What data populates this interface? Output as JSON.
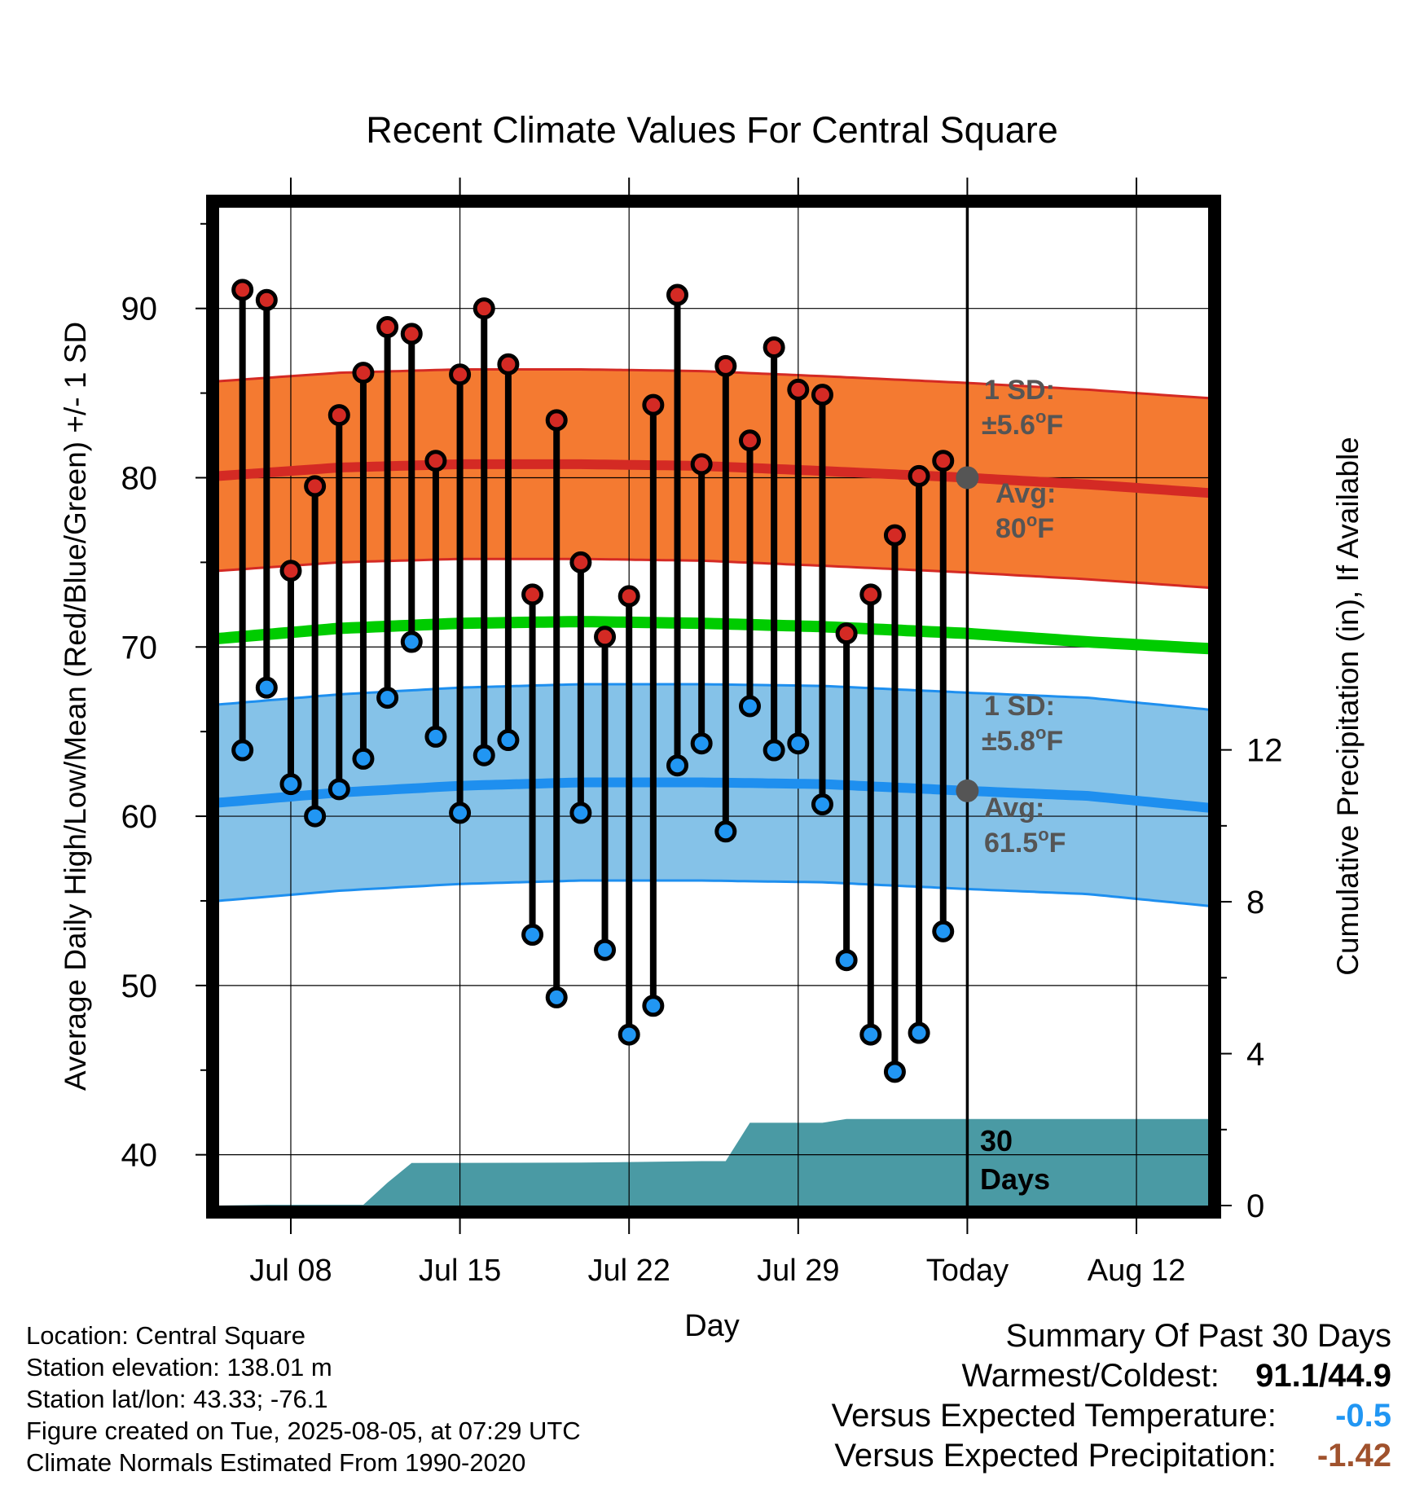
{
  "chart_data": {
    "type": "line",
    "title": "Recent Climate Values For Central Square",
    "xlabel": "Day",
    "ylabel_left": "Average Daily High/Low/Mean (Red/Blue/Green) +/- 1 SD",
    "ylabel_right": "Cumulative Precipitation (in), If Available",
    "xlim": [
      "2025-07-05",
      "2025-08-15"
    ],
    "ylim_left": [
      37,
      96
    ],
    "ylim_right": [
      0,
      26.3
    ],
    "left_ticks": [
      40,
      50,
      60,
      70,
      80,
      90
    ],
    "right_ticks": [
      0,
      4,
      8,
      12
    ],
    "x_ticks": [
      {
        "date": "2025-07-08",
        "label": "Jul 08"
      },
      {
        "date": "2025-07-15",
        "label": "Jul 15"
      },
      {
        "date": "2025-07-22",
        "label": "Jul 22"
      },
      {
        "date": "2025-07-29",
        "label": "Jul 29"
      },
      {
        "date": "2025-08-05",
        "label": "Today"
      },
      {
        "date": "2025-08-12",
        "label": "Aug 12"
      }
    ],
    "today": "2025-08-05",
    "grid": true,
    "normal_high": {
      "dates": [
        "2025-07-05",
        "2025-07-10",
        "2025-07-15",
        "2025-07-20",
        "2025-07-25",
        "2025-07-30",
        "2025-08-05",
        "2025-08-10",
        "2025-08-15"
      ],
      "mean": [
        80.1,
        80.6,
        80.8,
        80.8,
        80.7,
        80.4,
        80.0,
        79.6,
        79.1
      ],
      "sd": 5.6
    },
    "normal_mean": {
      "dates": [
        "2025-07-05",
        "2025-07-10",
        "2025-07-15",
        "2025-07-20",
        "2025-07-25",
        "2025-07-30",
        "2025-08-05",
        "2025-08-10",
        "2025-08-15"
      ],
      "values": [
        70.5,
        71.1,
        71.4,
        71.5,
        71.4,
        71.2,
        70.8,
        70.3,
        69.9
      ]
    },
    "normal_low": {
      "dates": [
        "2025-07-05",
        "2025-07-10",
        "2025-07-15",
        "2025-07-20",
        "2025-07-25",
        "2025-07-30",
        "2025-08-05",
        "2025-08-10",
        "2025-08-15"
      ],
      "mean": [
        60.8,
        61.4,
        61.8,
        62.0,
        62.0,
        61.9,
        61.5,
        61.2,
        60.5
      ],
      "sd": 5.8
    },
    "observed": {
      "dates": [
        "2025-07-06",
        "2025-07-07",
        "2025-07-08",
        "2025-07-09",
        "2025-07-10",
        "2025-07-11",
        "2025-07-12",
        "2025-07-13",
        "2025-07-14",
        "2025-07-15",
        "2025-07-16",
        "2025-07-17",
        "2025-07-18",
        "2025-07-19",
        "2025-07-20",
        "2025-07-21",
        "2025-07-22",
        "2025-07-23",
        "2025-07-24",
        "2025-07-25",
        "2025-07-26",
        "2025-07-27",
        "2025-07-28",
        "2025-07-29",
        "2025-07-30",
        "2025-07-31",
        "2025-08-01",
        "2025-08-02",
        "2025-08-03",
        "2025-08-04"
      ],
      "highs": [
        91.1,
        90.5,
        74.5,
        79.5,
        83.7,
        86.2,
        88.9,
        88.5,
        81.0,
        86.1,
        90.0,
        86.7,
        73.1,
        83.4,
        75.0,
        70.6,
        73.0,
        84.3,
        90.8,
        80.8,
        86.6,
        82.2,
        87.7,
        85.2,
        84.9,
        70.8,
        73.1,
        76.6,
        80.1,
        81.0
      ],
      "lows": [
        63.9,
        67.6,
        61.9,
        60.0,
        61.6,
        63.4,
        67.0,
        70.3,
        64.7,
        60.2,
        63.6,
        64.5,
        53.0,
        49.3,
        60.2,
        52.1,
        47.1,
        48.8,
        63.0,
        64.3,
        59.1,
        66.5,
        63.9,
        64.3,
        60.7,
        51.5,
        47.1,
        44.9,
        47.2,
        53.2
      ]
    },
    "precipitation": {
      "dates": [
        "2025-07-05",
        "2025-07-07",
        "2025-07-10",
        "2025-07-11",
        "2025-07-12",
        "2025-07-13",
        "2025-07-20",
        "2025-07-25",
        "2025-07-26",
        "2025-07-27",
        "2025-07-28",
        "2025-07-30",
        "2025-07-31",
        "2025-08-04",
        "2025-08-05",
        "2025-08-15"
      ],
      "cumulative_in": [
        0.0,
        0.02,
        0.02,
        0.02,
        0.6,
        1.12,
        1.13,
        1.17,
        1.17,
        2.18,
        2.18,
        2.18,
        2.28,
        2.28,
        2.28,
        2.28
      ]
    },
    "annotations": {
      "high_sd": "1 SD:",
      "high_sd_value": "±5.6",
      "high_avg": "Avg:",
      "high_avg_value": "80",
      "low_sd": "1 SD:",
      "low_sd_value": "±5.8",
      "low_avg": "Avg:",
      "low_avg_value": "61.5",
      "unit": "F",
      "degree": "o",
      "window": "30",
      "window_unit": "Days"
    },
    "colors": {
      "high_band": "#f47a31",
      "high_line": "#d42a24",
      "mean_line": "#00cc00",
      "low_band": "#85c2e8",
      "low_line": "#1e8fef",
      "precip": "#4a9aa4",
      "high_marker": "#d42a24",
      "low_marker": "#2196f3",
      "annotation": "#555555"
    }
  },
  "footer": {
    "location": "Location: Central Square",
    "elevation": "Station elevation: 138.01 m",
    "latlon": "Station lat/lon: 43.33; -76.1",
    "created": "Figure created on Tue, 2025-08-05, at 07:29 UTC",
    "normals": "Climate Normals Estimated From 1990-2020"
  },
  "summary": {
    "title": "Summary Of Past 30 Days",
    "warmest_label": "Warmest/Coldest:",
    "warmest_value": "91.1/44.9",
    "temp_label": "Versus Expected Temperature:",
    "temp_value": "-0.5",
    "temp_color": "#2196f3",
    "precip_label": "Versus Expected Precipitation:",
    "precip_value": "-1.42",
    "precip_color": "#a0522d"
  }
}
